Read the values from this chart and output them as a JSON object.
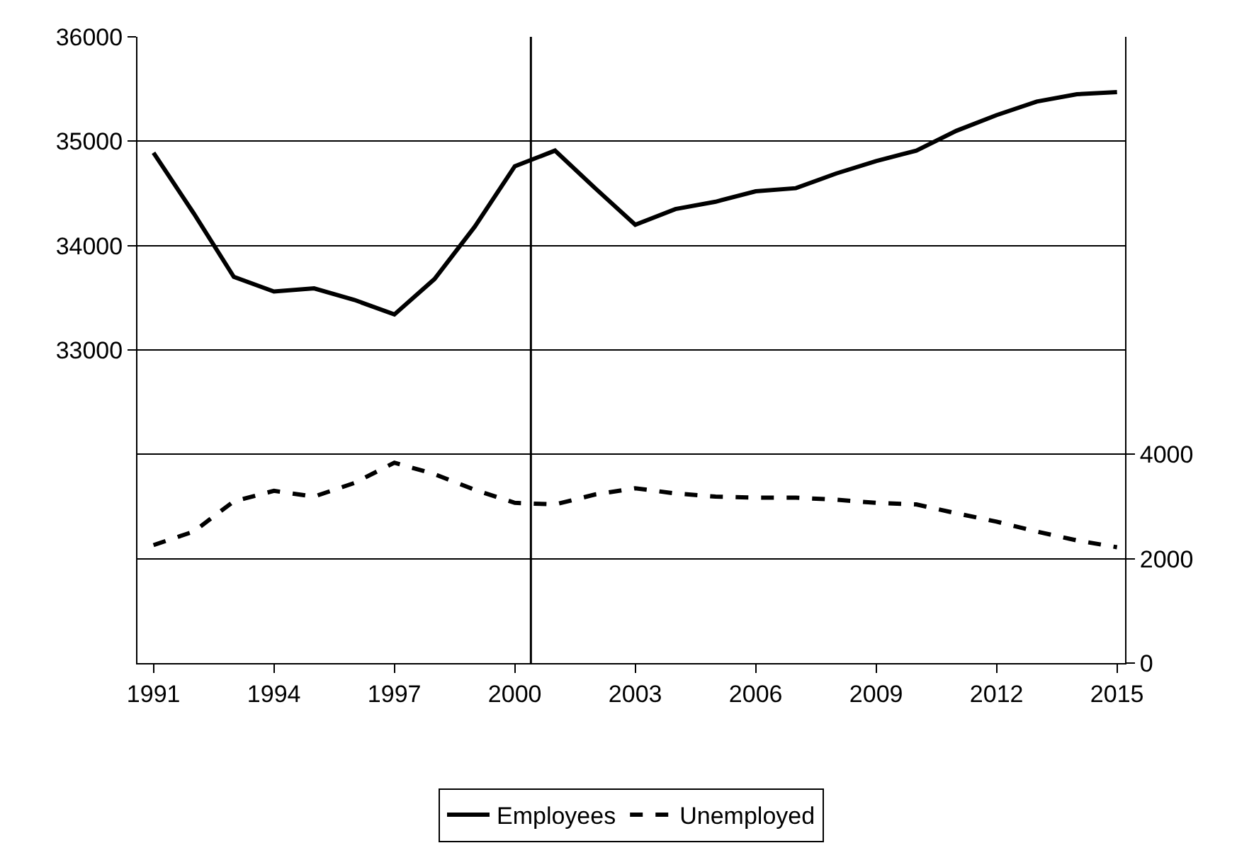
{
  "chart_data": {
    "type": "line",
    "x": [
      1991,
      1992,
      1993,
      1994,
      1995,
      1996,
      1997,
      1998,
      1999,
      2000,
      2001,
      2002,
      2003,
      2004,
      2005,
      2006,
      2007,
      2008,
      2009,
      2010,
      2011,
      2012,
      2013,
      2014,
      2015
    ],
    "series": [
      {
        "name": "Employees",
        "color": "#000000",
        "line_style": "solid",
        "values": [
          34890,
          34310,
          33700,
          33560,
          33590,
          33480,
          33340,
          33680,
          34180,
          34760,
          34910,
          34550,
          34200,
          34350,
          34420,
          34520,
          34550,
          34690,
          34810,
          34910,
          35100,
          35250,
          35380,
          35450,
          35470
        ]
      },
      {
        "name": "Unemployed",
        "color": "#000000",
        "line_style": "dashed",
        "axis": "y2",
        "values": [
          2260,
          2520,
          3100,
          3300,
          3190,
          3450,
          3840,
          3620,
          3320,
          3070,
          3040,
          3230,
          3350,
          3250,
          3190,
          3170,
          3170,
          3130,
          3070,
          3040,
          2870,
          2710,
          2520,
          2350,
          2220
        ]
      }
    ],
    "xlim": [
      1990.6,
      2015.2
    ],
    "xticks": [
      1991,
      1994,
      1997,
      2000,
      2003,
      2006,
      2009,
      2012,
      2015
    ],
    "ylim": [
      30000,
      36000
    ],
    "yticks": [
      33000,
      34000,
      35000,
      36000
    ],
    "y2lim": [
      0,
      12000
    ],
    "y2ticks": [
      0,
      2000,
      4000
    ],
    "ref_lines": [
      {
        "axis": "x",
        "value": 2000.4,
        "color": "#000000"
      }
    ],
    "grid": "y",
    "legend": "bottom",
    "marker": "none"
  }
}
